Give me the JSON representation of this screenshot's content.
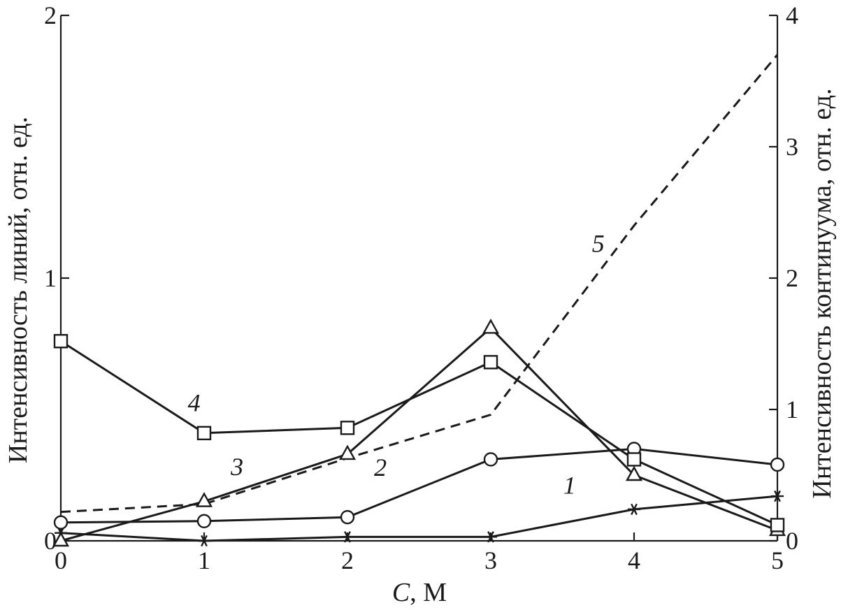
{
  "chart_data": {
    "type": "line",
    "xlabel_italic": "C",
    "xlabel_rest": ", M",
    "ylabel_left": "Интенсивность линий, отн. ед.",
    "ylabel_right": "Интенсивность континуума, отн. ед.",
    "x_ticks": [
      "0",
      "1",
      "2",
      "3",
      "4",
      "5"
    ],
    "y_left_ticks": [
      "0",
      "1",
      "2"
    ],
    "y_right_ticks": [
      "0",
      "1",
      "2",
      "3",
      "4"
    ],
    "xlim": [
      0,
      5
    ],
    "ylim_left": [
      0,
      2
    ],
    "ylim_right": [
      0,
      4
    ],
    "grid": false,
    "x": [
      0,
      1,
      2,
      3,
      4,
      5
    ],
    "series": [
      {
        "label": "1",
        "axis": "left",
        "style": "solid",
        "marker": "asterisk",
        "values": [
          0.03,
          0.0,
          0.015,
          0.015,
          0.12,
          0.17
        ]
      },
      {
        "label": "2",
        "axis": "left",
        "style": "solid",
        "marker": "circle",
        "values": [
          0.07,
          0.075,
          0.09,
          0.31,
          0.35,
          0.29
        ]
      },
      {
        "label": "3",
        "axis": "left",
        "style": "solid",
        "marker": "triangle",
        "values": [
          0.0,
          0.15,
          0.33,
          0.81,
          0.25,
          0.04
        ]
      },
      {
        "label": "4",
        "axis": "left",
        "style": "solid",
        "marker": "square",
        "values": [
          0.76,
          0.41,
          0.43,
          0.68,
          0.31,
          0.06
        ]
      },
      {
        "label": "5",
        "axis": "right",
        "style": "dashed",
        "marker": "none",
        "values": [
          0.22,
          0.28,
          0.63,
          0.96,
          2.4,
          3.7
        ]
      }
    ]
  }
}
